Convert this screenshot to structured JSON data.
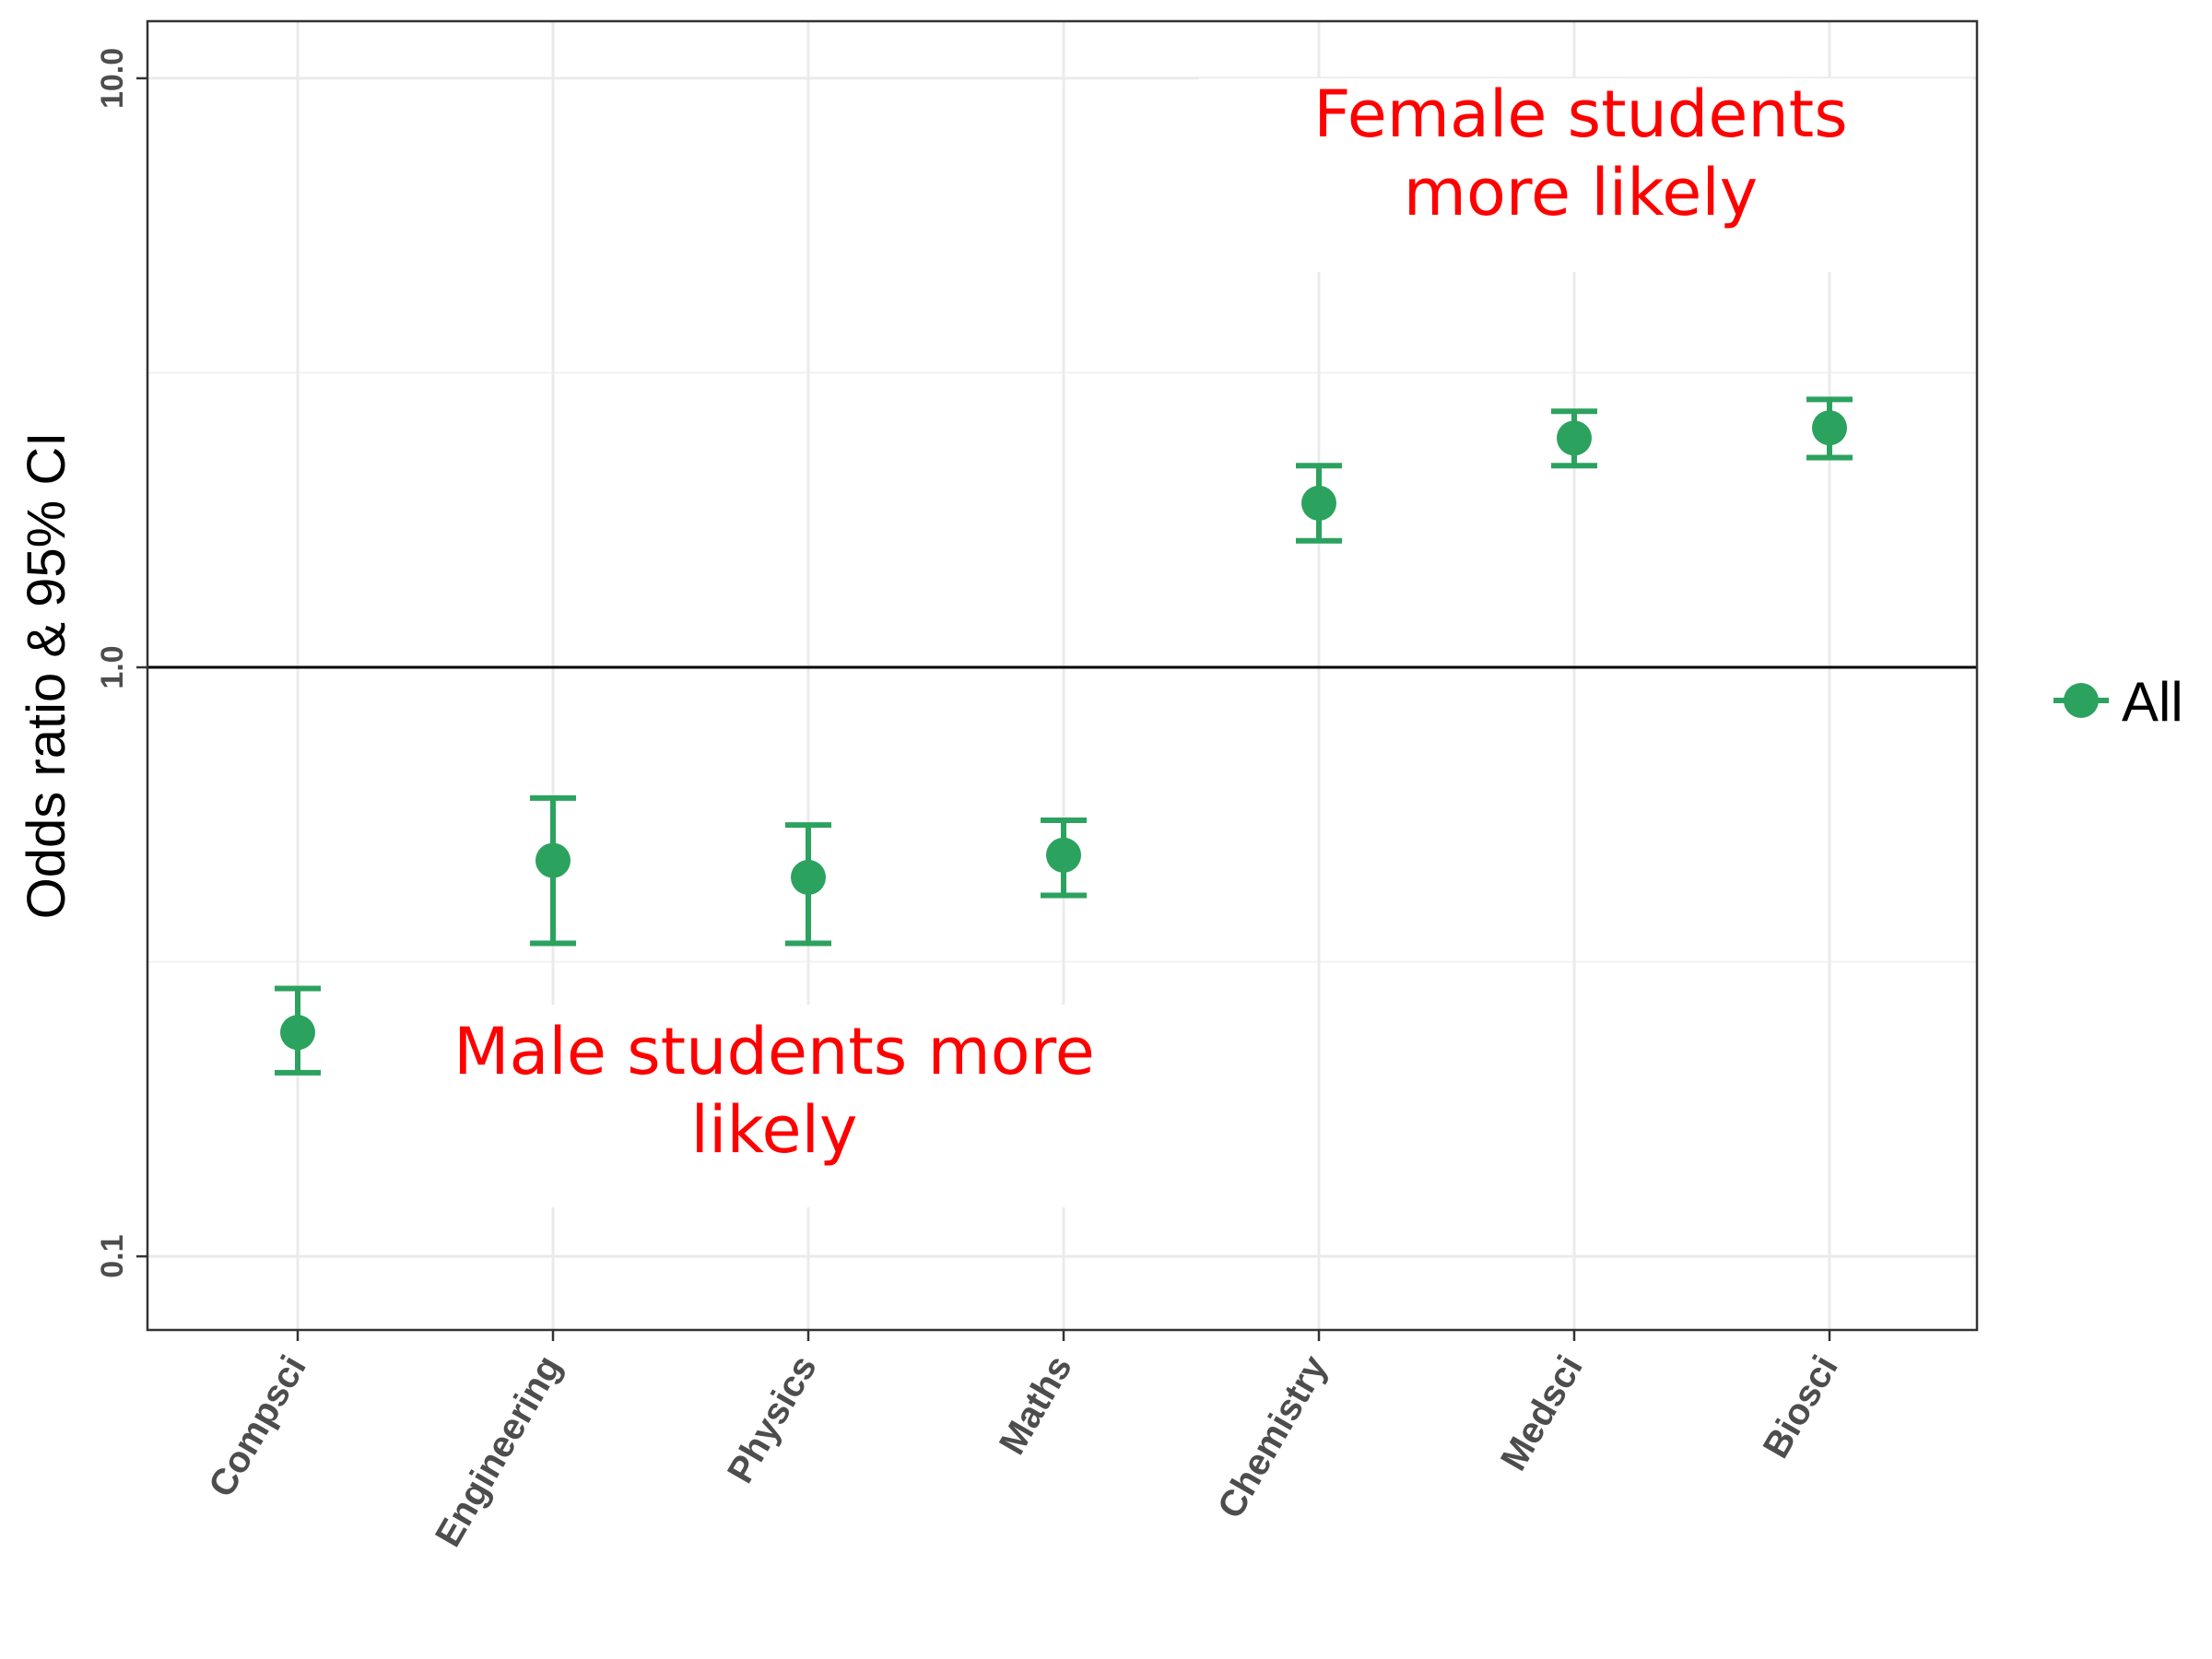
{
  "chart_data": {
    "type": "scatter",
    "subtype": "point-errorbar",
    "ylabel": "Odds ratio & 95% CI",
    "xlabel": "",
    "y_scale": "log10",
    "ylim": [
      0.075,
      12.5
    ],
    "y_ticks": [
      {
        "value": 0.1,
        "label": "0.1"
      },
      {
        "value": 1,
        "label": "1.0"
      },
      {
        "value": 10,
        "label": "10.0"
      }
    ],
    "reference_line": 1.0,
    "grid": true,
    "legend": {
      "position": "right",
      "entries": [
        {
          "label": "All",
          "color": "#2ca25f"
        }
      ]
    },
    "categories": [
      "Compsci",
      "Engineering",
      "Physics",
      "Maths",
      "Chemistry",
      "Medsci",
      "Biosci"
    ],
    "series": [
      {
        "name": "All",
        "color": "#2ca25f",
        "values": [
          0.24,
          0.47,
          0.44,
          0.48,
          1.9,
          2.45,
          2.55
        ],
        "lower": [
          0.205,
          0.34,
          0.34,
          0.41,
          1.64,
          2.2,
          2.27
        ],
        "upper": [
          0.285,
          0.6,
          0.54,
          0.55,
          2.2,
          2.72,
          2.85
        ]
      }
    ],
    "annotations": [
      {
        "text_lines": [
          "Female students",
          "more likely"
        ]
      },
      {
        "text_lines": [
          "Male students more",
          "likely"
        ]
      }
    ]
  }
}
